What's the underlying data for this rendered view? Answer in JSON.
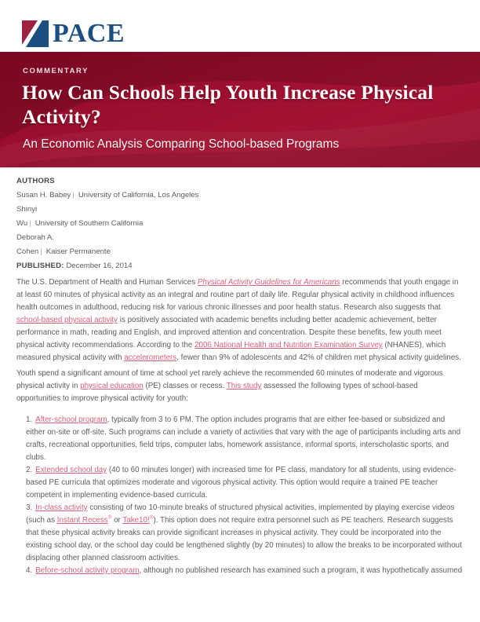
{
  "masthead": {
    "logo_text": "PACE"
  },
  "colors": {
    "banner_red": "#9c0e2f",
    "logo_blue": "#1d4e80",
    "logo_red": "#9e2240",
    "link_pink": "#d7617c",
    "body_text": "#5c5c60"
  },
  "banner": {
    "kicker": "COMMENTARY",
    "title": "How Can Schools Help Youth Increase Physical Activity?",
    "subtitle": "An Economic Analysis Comparing School-based Programs"
  },
  "authors": {
    "label": "AUTHORS",
    "lines": [
      {
        "name": "Susan H. Babey",
        "sep": "|",
        "affiliation": "University of California, Los Angeles"
      },
      {
        "name": "Shinyi"
      },
      {
        "name": "Wu",
        "sep": "|",
        "affiliation": "University of Southern California"
      },
      {
        "name": "Deborah A."
      },
      {
        "name": "Cohen",
        "sep": "|",
        "affiliation": "Kaiser Permanente"
      }
    ]
  },
  "published": {
    "label": "PUBLISHED:",
    "date": "December 16, 2014"
  },
  "article": {
    "paragraphs": [
      [
        {
          "t": "The U.S. Department of Health and Human Services "
        },
        {
          "t": "Physical Activity Guidelines for Americans",
          "k": "lnk it"
        },
        {
          "t": " recommends that youth engage in at least 60 minutes of physical activity as an integral and routine part of daily life. Regular physical activity in childhood influences health outcomes in adulthood, reducing risk for various chronic illnesses and poor health status. Research also suggests that "
        },
        {
          "t": "school-based physical activity",
          "k": "lnk"
        },
        {
          "t": " is positively associated with academic benefits including better academic achievement, better performance in math, reading and English, and improved attention and concentration. Despite these benefits, few youth meet physical activity recommendations. According to the "
        },
        {
          "t": "2006 National Health and Nutrition Examination Survey",
          "k": "lnk"
        },
        {
          "t": " (NHANES), which measured physical activity with "
        },
        {
          "t": "accelerometers",
          "k": "lnk"
        },
        {
          "t": ", fewer than 9% of adolescents and 42% of children met physical activity guidelines."
        }
      ],
      [
        {
          "t": "Youth spend a significant amount of time at school yet rarely achieve the recommended 60 minutes of moderate and vigorous physical activity in "
        },
        {
          "t": "physical education",
          "k": "lnk"
        },
        {
          "t": " (PE) classes or recess. "
        },
        {
          "t": "This study",
          "k": "lnk"
        },
        {
          "t": " assessed the following types of school-based opportunities to improve physical activity for youth:"
        }
      ]
    ],
    "list": [
      {
        "number": "1.",
        "segments": [
          {
            "t": "After-school program",
            "k": "lnk"
          },
          {
            "t": ", typically from 3 to 6 PM. The option includes programs that are either fee-based or subsidized and either on-site or off-site. Such programs can include a variety of activities that vary with the age of participants including arts and crafts, recreational opportunities, field trips, computer labs, homework assistance, informal sports, interscholastic sports, and clubs."
          }
        ]
      },
      {
        "number": "2.",
        "segments": [
          {
            "t": "Extended school day",
            "k": "lnk"
          },
          {
            "t": " (40 to 60 minutes longer) with increased time for PE class, mandatory for all students, using evidence-based PE curricula that optimizes moderate and vigorous physical activity. This option would require a trained PE teacher competent in implementing evidence-based curricula."
          }
        ]
      },
      {
        "number": "3.",
        "segments": [
          {
            "t": "In-class activity",
            "k": "lnk"
          },
          {
            "t": " consisting of two 10-minute breaks of structured physical activities, implemented by playing exercise videos (such as "
          },
          {
            "t": "Instant Recess",
            "k": "lnk"
          },
          {
            "t": "®",
            "k": "lnk",
            "sup": true
          },
          {
            "t": " or "
          },
          {
            "t": "Take10!",
            "k": "lnk"
          },
          {
            "t": "®",
            "k": "lnk",
            "sup": true
          },
          {
            "t": "). This option does not require extra personnel such as PE teachers. Research suggests that these physical activity breaks can provide significant increases in physical activity. They could be incorporated into the existing school day, or the school day could be lengthened slightly (by 20 minutes) to allow the breaks to be incorporated without displacing other planned classroom activities."
          }
        ]
      },
      {
        "number": "4.",
        "segments": [
          {
            "t": "Before-school activity program",
            "k": "lnk"
          },
          {
            "t": ", although no published research has examined such a program, it was hypothetically assumed"
          }
        ]
      }
    ]
  }
}
